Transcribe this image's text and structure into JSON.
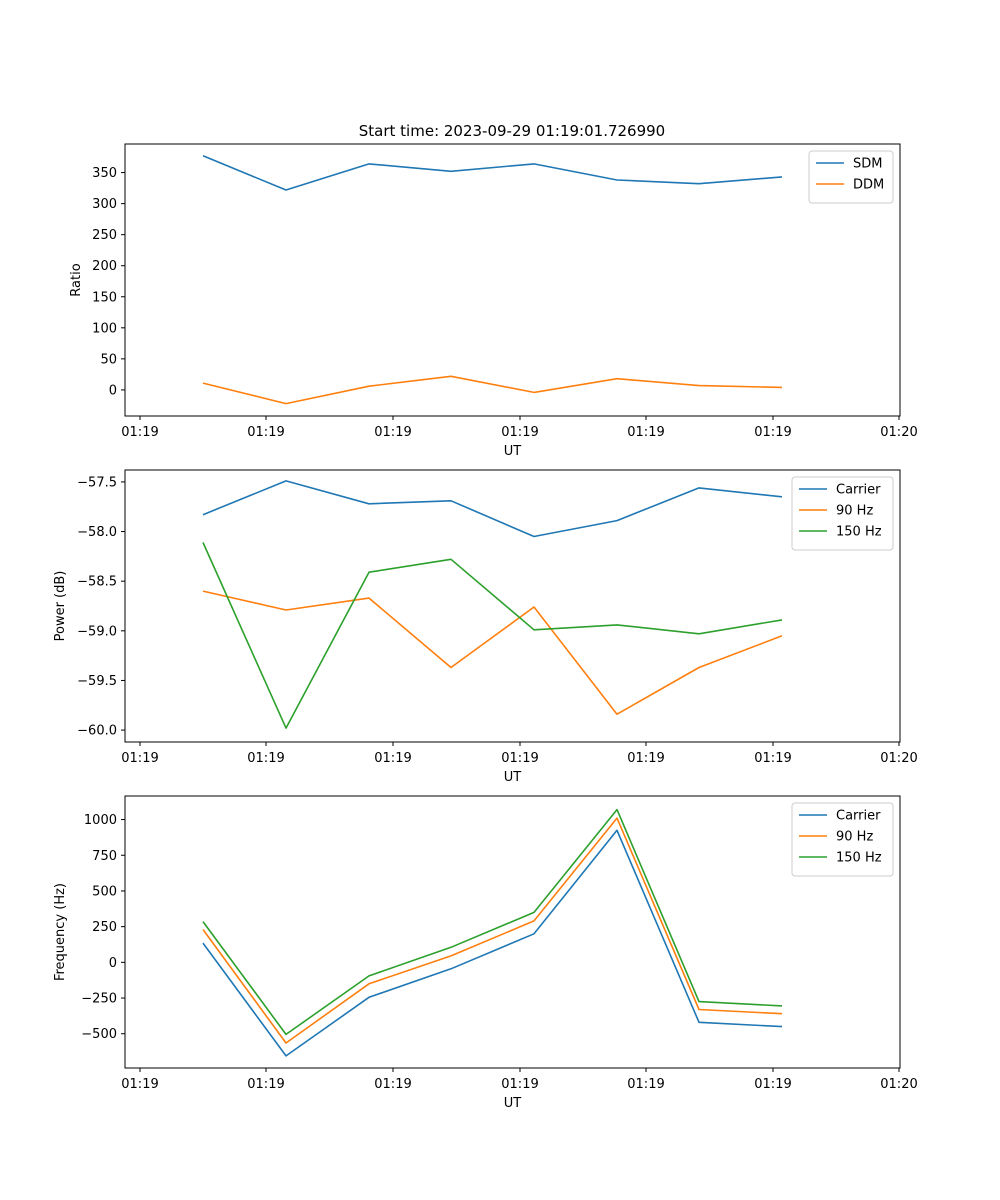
{
  "chart_data": [
    {
      "type": "line",
      "title": "Start time: 2023-09-29 01:19:01.726990",
      "xlabel": "UT",
      "ylabel": "Ratio",
      "x_tick_labels": [
        "01:19",
        "01:19",
        "01:19",
        "01:19",
        "01:19",
        "01:19",
        "01:19",
        "01:20"
      ],
      "y_ticks": [
        0,
        50,
        100,
        150,
        200,
        250,
        300,
        350
      ],
      "ylim": [
        -42,
        396
      ],
      "legend_position": "upper-right",
      "series": [
        {
          "name": "SDM",
          "color": "#1f77b4",
          "values": [
            377,
            322,
            364,
            352,
            364,
            338,
            332,
            343
          ]
        },
        {
          "name": "DDM",
          "color": "#ff7f0e",
          "values": [
            11,
            -22,
            6,
            22,
            -4,
            18,
            7,
            4
          ]
        }
      ]
    },
    {
      "type": "line",
      "title": "",
      "xlabel": "UT",
      "ylabel": "Power (dB)",
      "x_tick_labels": [
        "01:19",
        "01:19",
        "01:19",
        "01:19",
        "01:19",
        "01:19",
        "01:19",
        "01:20"
      ],
      "y_ticks": [
        -60.0,
        -59.5,
        -59.0,
        -58.5,
        -58.0,
        -57.5
      ],
      "y_tick_labels": [
        "−60.0",
        "−59.5",
        "−59.0",
        "−58.5",
        "−58.0",
        "−57.5"
      ],
      "ylim": [
        -60.12,
        -57.38
      ],
      "legend_position": "upper-right",
      "series": [
        {
          "name": "Carrier",
          "color": "#1f77b4",
          "values": [
            -57.83,
            -57.49,
            -57.72,
            -57.69,
            -58.05,
            -57.89,
            -57.56,
            -57.65
          ]
        },
        {
          "name": "90 Hz",
          "color": "#ff7f0e",
          "values": [
            -58.6,
            -58.79,
            -58.67,
            -59.37,
            -58.76,
            -59.84,
            -59.37,
            -59.05
          ]
        },
        {
          "name": "150 Hz",
          "color": "#2ca02c",
          "values": [
            -58.11,
            -59.98,
            -58.41,
            -58.28,
            -58.99,
            -58.94,
            -59.03,
            -58.89
          ]
        }
      ]
    },
    {
      "type": "line",
      "title": "",
      "xlabel": "UT",
      "ylabel": "Frequency (Hz)",
      "x_tick_labels": [
        "01:19",
        "01:19",
        "01:19",
        "01:19",
        "01:19",
        "01:19",
        "01:19",
        "01:20"
      ],
      "y_ticks": [
        -500,
        -250,
        0,
        250,
        500,
        750,
        1000
      ],
      "y_tick_labels": [
        "−500",
        "−250",
        "0",
        "250",
        "500",
        "750",
        "1000"
      ],
      "ylim": [
        -740,
        1165
      ],
      "legend_position": "upper-right",
      "series": [
        {
          "name": "Carrier",
          "color": "#1f77b4",
          "values": [
            135,
            -655,
            -245,
            -45,
            200,
            925,
            -420,
            -450
          ]
        },
        {
          "name": "90 Hz",
          "color": "#ff7f0e",
          "values": [
            230,
            -565,
            -150,
            45,
            290,
            1010,
            -330,
            -360
          ]
        },
        {
          "name": "150 Hz",
          "color": "#2ca02c",
          "values": [
            285,
            -505,
            -95,
            105,
            350,
            1070,
            -275,
            -305
          ]
        }
      ]
    }
  ]
}
